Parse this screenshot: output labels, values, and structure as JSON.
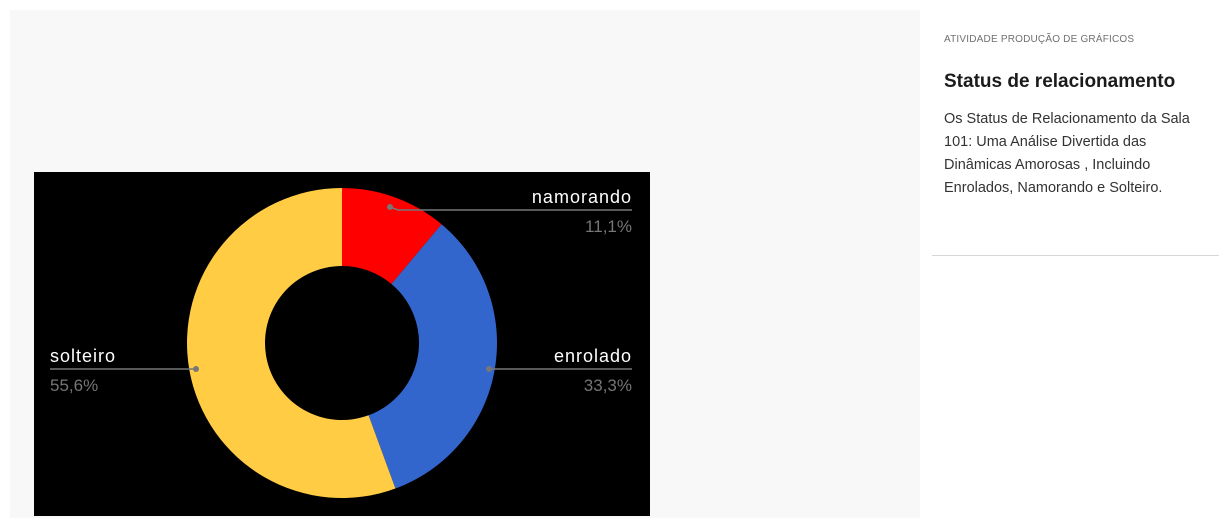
{
  "activity": {
    "category": "ATIVIDADE PRODUÇÃO DE GRÁFICOS",
    "title": "Status de relacionamento",
    "description": "Os Status de Relacionamento da Sala 101: Uma Análise Divertida das Dinâmicas Amorosas , Incluindo Enrolados, Namorando e Solteiro."
  },
  "chart_data": {
    "type": "pie",
    "style": "donut",
    "background": "#000000",
    "slices": [
      {
        "label": "namorando",
        "value": 11.1,
        "value_label": "11,1%",
        "color": "#ff0000"
      },
      {
        "label": "enrolado",
        "value": 33.3,
        "value_label": "33,3%",
        "color": "#3366cc"
      },
      {
        "label": "solteiro",
        "value": 55.6,
        "value_label": "55,6%",
        "color": "#ffcc44"
      }
    ]
  }
}
